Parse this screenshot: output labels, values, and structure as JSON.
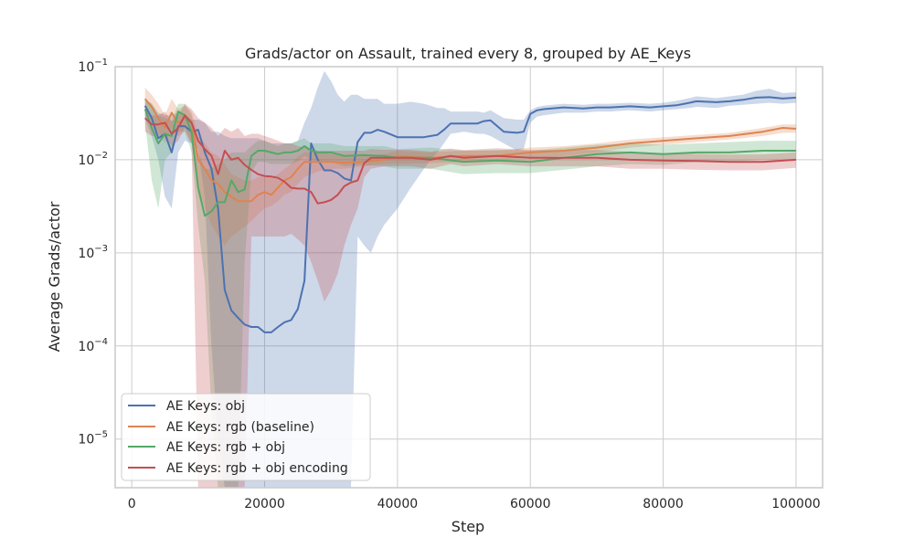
{
  "chart_data": {
    "type": "line",
    "title": "Grads/actor on Assault, trained every 8, grouped by AE_Keys",
    "xlabel": "Step",
    "ylabel": "Average Grads/actor",
    "xlim": [
      -2500,
      104000
    ],
    "ylim": [
      3e-06,
      0.1
    ],
    "yscale": "log",
    "grid": true,
    "legend_position": "lower-left",
    "xticks": [
      0,
      20000,
      40000,
      60000,
      80000,
      100000
    ],
    "xtick_labels": [
      "0",
      "20000",
      "40000",
      "60000",
      "80000",
      "100000"
    ],
    "yticks": [
      {
        "value": 1e-05,
        "base": "10",
        "exp": "−5"
      },
      {
        "value": 0.0001,
        "base": "10",
        "exp": "−4"
      },
      {
        "value": 0.001,
        "base": "10",
        "exp": "−3"
      },
      {
        "value": 0.01,
        "base": "10",
        "exp": "−2"
      },
      {
        "value": 0.1,
        "base": "10",
        "exp": "−1"
      }
    ],
    "series": [
      {
        "name": "AE Keys: obj",
        "color": "#4c72b0",
        "x": [
          2000,
          3000,
          4000,
          5000,
          6000,
          7000,
          8000,
          9000,
          10000,
          11000,
          12000,
          13000,
          14000,
          15000,
          16000,
          17000,
          18000,
          19000,
          20000,
          21000,
          22000,
          23000,
          24000,
          25000,
          26000,
          27000,
          28000,
          29000,
          30000,
          31000,
          32000,
          33000,
          34000,
          35000,
          36000,
          37000,
          38000,
          40000,
          42000,
          44000,
          45000,
          46000,
          47000,
          48000,
          50000,
          52000,
          53000,
          54000,
          56000,
          58000,
          59000,
          60000,
          61000,
          62000,
          65000,
          68000,
          70000,
          72000,
          75000,
          78000,
          80000,
          82000,
          84000,
          85000,
          88000,
          90000,
          92000,
          94000,
          96000,
          98000,
          100000
        ],
        "y": [
          0.038,
          0.028,
          0.017,
          0.019,
          0.012,
          0.023,
          0.023,
          0.02,
          0.021,
          0.012,
          0.008,
          0.003,
          0.0004,
          0.00024,
          0.0002,
          0.00017,
          0.00016,
          0.00016,
          0.00014,
          0.00014,
          0.00016,
          0.00018,
          0.00019,
          0.00025,
          0.0005,
          0.015,
          0.01,
          0.0077,
          0.0077,
          0.0072,
          0.0063,
          0.006,
          0.0155,
          0.0195,
          0.0195,
          0.021,
          0.02,
          0.0175,
          0.0175,
          0.0175,
          0.018,
          0.0185,
          0.021,
          0.0245,
          0.0245,
          0.0245,
          0.026,
          0.0265,
          0.02,
          0.0195,
          0.02,
          0.031,
          0.034,
          0.035,
          0.0365,
          0.0355,
          0.0365,
          0.0365,
          0.0375,
          0.0365,
          0.0375,
          0.0385,
          0.041,
          0.0425,
          0.0415,
          0.0425,
          0.044,
          0.0465,
          0.047,
          0.0455,
          0.0465
        ],
        "lower": [
          0.028,
          0.018,
          0.01,
          0.004,
          0.003,
          0.012,
          0.016,
          0.015,
          0.013,
          0.004,
          0.0001,
          1e-05,
          3e-06,
          3e-06,
          3e-06,
          3e-06,
          3e-06,
          3e-06,
          3e-06,
          3e-06,
          3e-06,
          3e-06,
          3e-06,
          3e-06,
          3e-06,
          3e-06,
          3e-06,
          3e-06,
          3e-06,
          3e-06,
          3e-06,
          3e-06,
          0.0015,
          0.0012,
          0.001,
          0.0015,
          0.002,
          0.003,
          0.005,
          0.008,
          0.01,
          0.012,
          0.015,
          0.019,
          0.02,
          0.019,
          0.019,
          0.018,
          0.015,
          0.0125,
          0.013,
          0.025,
          0.029,
          0.03,
          0.032,
          0.032,
          0.033,
          0.033,
          0.034,
          0.033,
          0.034,
          0.035,
          0.036,
          0.037,
          0.036,
          0.038,
          0.039,
          0.04,
          0.041,
          0.04,
          0.041
        ],
        "upper": [
          0.045,
          0.04,
          0.032,
          0.03,
          0.03,
          0.032,
          0.03,
          0.027,
          0.027,
          0.025,
          0.02,
          0.02,
          0.018,
          0.017,
          0.017,
          0.017,
          0.017,
          0.017,
          0.016,
          0.015,
          0.015,
          0.015,
          0.015,
          0.016,
          0.025,
          0.036,
          0.06,
          0.09,
          0.07,
          0.05,
          0.042,
          0.05,
          0.05,
          0.045,
          0.045,
          0.045,
          0.04,
          0.04,
          0.042,
          0.04,
          0.038,
          0.036,
          0.036,
          0.033,
          0.033,
          0.033,
          0.032,
          0.034,
          0.028,
          0.027,
          0.027,
          0.034,
          0.037,
          0.038,
          0.04,
          0.039,
          0.04,
          0.04,
          0.041,
          0.04,
          0.041,
          0.043,
          0.046,
          0.048,
          0.046,
          0.048,
          0.05,
          0.055,
          0.058,
          0.052,
          0.053
        ]
      },
      {
        "name": "AE Keys: rgb (baseline)",
        "color": "#dd8452",
        "x": [
          2000,
          3000,
          4000,
          5000,
          6000,
          7000,
          8000,
          9000,
          10000,
          11000,
          12000,
          13000,
          14000,
          15000,
          16000,
          17000,
          18000,
          19000,
          20000,
          21000,
          22000,
          23000,
          24000,
          25000,
          26000,
          27000,
          28000,
          30000,
          32000,
          35000,
          38000,
          40000,
          45000,
          50000,
          55000,
          60000,
          65000,
          70000,
          75000,
          80000,
          85000,
          90000,
          95000,
          98000,
          100000
        ],
        "y": [
          0.045,
          0.037,
          0.028,
          0.022,
          0.032,
          0.025,
          0.028,
          0.025,
          0.01,
          0.008,
          0.006,
          0.0055,
          0.0045,
          0.004,
          0.0036,
          0.0036,
          0.0036,
          0.0042,
          0.0045,
          0.0042,
          0.005,
          0.006,
          0.0065,
          0.008,
          0.0095,
          0.0095,
          0.0095,
          0.0095,
          0.0093,
          0.0095,
          0.01,
          0.011,
          0.0105,
          0.011,
          0.011,
          0.012,
          0.0125,
          0.0135,
          0.015,
          0.016,
          0.017,
          0.018,
          0.02,
          0.022,
          0.0215
        ],
        "lower": [
          0.035,
          0.025,
          0.02,
          0.015,
          0.022,
          0.018,
          0.02,
          0.015,
          0.005,
          0.003,
          0.002,
          0.0015,
          0.0012,
          0.0015,
          0.0017,
          0.0019,
          0.0022,
          0.0026,
          0.003,
          0.0032,
          0.0036,
          0.0042,
          0.0045,
          0.0055,
          0.0065,
          0.007,
          0.0075,
          0.008,
          0.008,
          0.0085,
          0.009,
          0.009,
          0.0092,
          0.0095,
          0.0098,
          0.0105,
          0.011,
          0.012,
          0.0135,
          0.0145,
          0.0155,
          0.0165,
          0.018,
          0.0195,
          0.0195
        ],
        "upper": [
          0.06,
          0.05,
          0.04,
          0.03,
          0.045,
          0.035,
          0.038,
          0.033,
          0.018,
          0.015,
          0.012,
          0.011,
          0.009,
          0.007,
          0.0065,
          0.006,
          0.006,
          0.0065,
          0.0068,
          0.0065,
          0.007,
          0.008,
          0.009,
          0.011,
          0.012,
          0.012,
          0.012,
          0.0115,
          0.011,
          0.011,
          0.0115,
          0.0125,
          0.012,
          0.0125,
          0.0125,
          0.0135,
          0.014,
          0.015,
          0.0165,
          0.0175,
          0.0185,
          0.0195,
          0.022,
          0.024,
          0.024
        ]
      },
      {
        "name": "AE Keys: rgb + obj",
        "color": "#55a868",
        "x": [
          2000,
          3000,
          4000,
          5000,
          6000,
          7000,
          8000,
          9000,
          10000,
          11000,
          12000,
          13000,
          14000,
          15000,
          16000,
          17000,
          18000,
          19000,
          20000,
          21000,
          22000,
          23000,
          24000,
          25000,
          26000,
          27000,
          28000,
          30000,
          32000,
          35000,
          38000,
          40000,
          45000,
          50000,
          55000,
          60000,
          65000,
          70000,
          75000,
          80000,
          85000,
          90000,
          95000,
          100000
        ],
        "y": [
          0.035,
          0.022,
          0.015,
          0.019,
          0.018,
          0.033,
          0.03,
          0.02,
          0.005,
          0.0025,
          0.0028,
          0.0035,
          0.0035,
          0.006,
          0.0045,
          0.0048,
          0.011,
          0.0125,
          0.0125,
          0.012,
          0.0115,
          0.012,
          0.012,
          0.0125,
          0.014,
          0.0125,
          0.012,
          0.012,
          0.011,
          0.0112,
          0.011,
          0.0105,
          0.0105,
          0.0095,
          0.0098,
          0.0095,
          0.0105,
          0.0115,
          0.012,
          0.0115,
          0.012,
          0.012,
          0.0125,
          0.0125
        ],
        "lower": [
          0.025,
          0.006,
          0.003,
          0.01,
          0.012,
          0.02,
          0.02,
          0.012,
          0.002,
          0.0005,
          2e-05,
          3e-06,
          3e-06,
          3e-06,
          3e-06,
          0.0008,
          0.0075,
          0.0095,
          0.0095,
          0.009,
          0.009,
          0.009,
          0.009,
          0.0095,
          0.011,
          0.01,
          0.0095,
          0.0095,
          0.0085,
          0.0088,
          0.0085,
          0.008,
          0.008,
          0.007,
          0.0072,
          0.0072,
          0.0078,
          0.0085,
          0.009,
          0.0088,
          0.0095,
          0.0095,
          0.01,
          0.01
        ],
        "upper": [
          0.045,
          0.04,
          0.03,
          0.028,
          0.026,
          0.04,
          0.04,
          0.03,
          0.012,
          0.008,
          0.008,
          0.009,
          0.01,
          0.012,
          0.012,
          0.012,
          0.014,
          0.016,
          0.016,
          0.015,
          0.014,
          0.015,
          0.015,
          0.016,
          0.017,
          0.015,
          0.015,
          0.015,
          0.014,
          0.014,
          0.014,
          0.013,
          0.0135,
          0.0125,
          0.0128,
          0.0125,
          0.0135,
          0.0145,
          0.015,
          0.0145,
          0.015,
          0.0155,
          0.016,
          0.016
        ]
      },
      {
        "name": "AE Keys: rgb + obj encoding",
        "color": "#c44e52",
        "x": [
          2000,
          3000,
          4000,
          5000,
          6000,
          7000,
          8000,
          9000,
          10000,
          11000,
          12000,
          13000,
          14000,
          15000,
          16000,
          17000,
          18000,
          19000,
          20000,
          21000,
          22000,
          23000,
          24000,
          25000,
          26000,
          27000,
          28000,
          29000,
          30000,
          31000,
          32000,
          33000,
          34000,
          35000,
          36000,
          38000,
          40000,
          42000,
          45000,
          48000,
          50000,
          55000,
          60000,
          65000,
          70000,
          75000,
          80000,
          85000,
          90000,
          95000,
          100000
        ],
        "y": [
          0.028,
          0.024,
          0.024,
          0.025,
          0.019,
          0.022,
          0.03,
          0.025,
          0.016,
          0.013,
          0.011,
          0.007,
          0.0125,
          0.01,
          0.0105,
          0.0088,
          0.0078,
          0.007,
          0.0067,
          0.0066,
          0.0064,
          0.0058,
          0.005,
          0.0049,
          0.0049,
          0.0045,
          0.0034,
          0.0035,
          0.0037,
          0.0042,
          0.0052,
          0.0057,
          0.006,
          0.0092,
          0.0105,
          0.0105,
          0.0105,
          0.0105,
          0.01,
          0.011,
          0.0105,
          0.011,
          0.0105,
          0.0105,
          0.0105,
          0.01,
          0.0098,
          0.0097,
          0.0095,
          0.0095,
          0.01
        ],
        "lower": [
          0.02,
          0.018,
          0.018,
          0.018,
          0.014,
          0.016,
          0.022,
          0.015,
          3e-06,
          3e-06,
          3e-06,
          3e-06,
          3e-06,
          3e-06,
          3e-06,
          3e-06,
          0.0015,
          0.0015,
          0.0015,
          0.0015,
          0.0015,
          0.0015,
          0.0016,
          0.0014,
          0.0012,
          0.0008,
          0.0005,
          0.0003,
          0.0004,
          0.0006,
          0.0012,
          0.002,
          0.003,
          0.0065,
          0.008,
          0.0085,
          0.0085,
          0.0085,
          0.008,
          0.009,
          0.0085,
          0.009,
          0.0085,
          0.0085,
          0.0085,
          0.008,
          0.008,
          0.0078,
          0.0077,
          0.0077,
          0.0082
        ],
        "upper": [
          0.04,
          0.03,
          0.03,
          0.033,
          0.026,
          0.03,
          0.04,
          0.035,
          0.028,
          0.025,
          0.022,
          0.018,
          0.022,
          0.02,
          0.022,
          0.018,
          0.019,
          0.019,
          0.018,
          0.017,
          0.016,
          0.015,
          0.015,
          0.014,
          0.0135,
          0.013,
          0.0125,
          0.0125,
          0.0125,
          0.0125,
          0.0125,
          0.0125,
          0.0125,
          0.0125,
          0.013,
          0.0128,
          0.0128,
          0.0128,
          0.0122,
          0.0132,
          0.0127,
          0.0133,
          0.0127,
          0.0127,
          0.0127,
          0.0122,
          0.0118,
          0.0116,
          0.0114,
          0.0114,
          0.012
        ]
      }
    ]
  }
}
